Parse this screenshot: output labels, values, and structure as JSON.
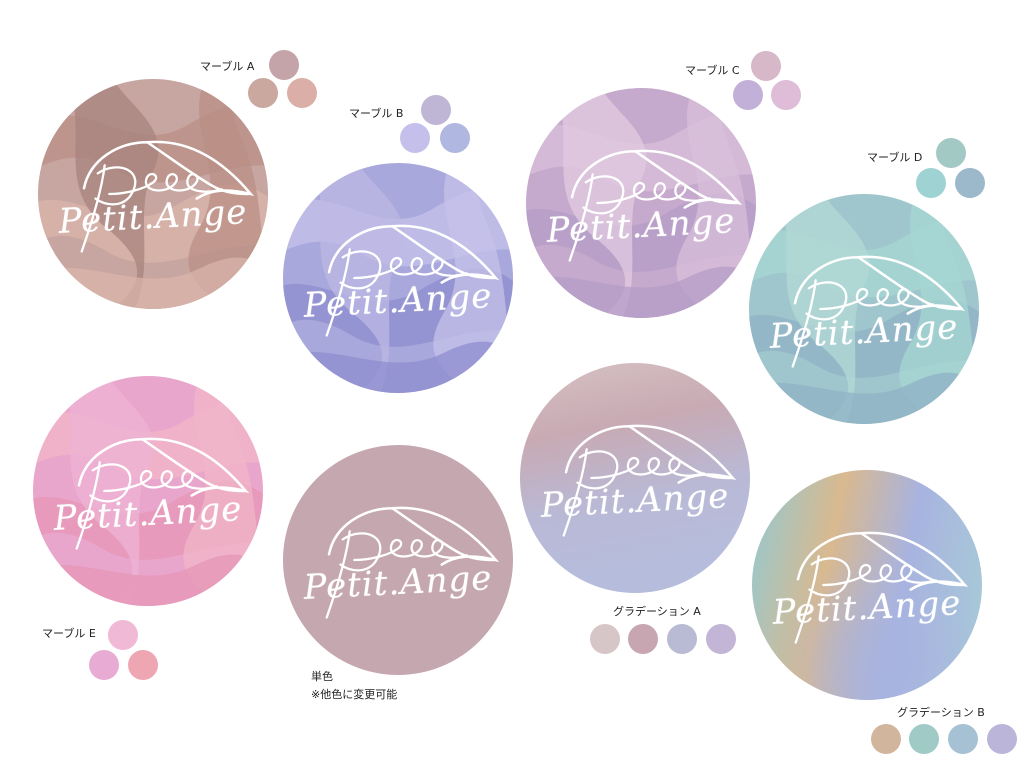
{
  "logo_text": "Petit.Ange",
  "badges": [
    {
      "name": "marble-a",
      "colors": [
        "#c7a6a2",
        "#b98f86",
        "#d9b4aa",
        "#a8837e"
      ]
    },
    {
      "name": "marble-b",
      "colors": [
        "#a9a8dc",
        "#c6c2ea",
        "#8f8dcf",
        "#bdb8e4"
      ]
    },
    {
      "name": "marble-c",
      "colors": [
        "#c6aacd",
        "#d8bfd9",
        "#b49cc7",
        "#e2cbe0"
      ]
    },
    {
      "name": "marble-d",
      "colors": [
        "#9fc6cc",
        "#a6d7d3",
        "#8fb2c6",
        "#b3d9d6"
      ]
    },
    {
      "name": "marble-e",
      "colors": [
        "#e9a6cc",
        "#f0b6c8",
        "#e596b6",
        "#efb3d4"
      ]
    },
    {
      "name": "solid",
      "colors": [
        "#c5a7af"
      ]
    },
    {
      "name": "gradation-a",
      "colors": [
        "#d6c2c3",
        "#c8aab3",
        "#b9b9d6",
        "#b6bddc"
      ]
    },
    {
      "name": "gradation-b",
      "colors": [
        "#9cc7c9",
        "#d9b98f",
        "#a8b3e0",
        "#a7c8d8"
      ]
    }
  ],
  "labels": {
    "marble_a": "マーブル A",
    "marble_b": "マーブル B",
    "marble_c": "マーブル C",
    "marble_d": "マーブル D",
    "marble_e": "マーブル E",
    "solid_1": "単色",
    "solid_2": "※他色に変更可能",
    "gradation_a": "グラデーション A",
    "gradation_b": "グラデーション B"
  },
  "swatches": {
    "marble_a": [
      "#c4a4a8",
      "#caa79f",
      "#dbaea7"
    ],
    "marble_b": [
      "#bfb5d5",
      "#c4c0eb",
      "#b0b7e0"
    ],
    "marble_c": [
      "#d7b8c9",
      "#c2b0d8",
      "#dfbcd8"
    ],
    "marble_d": [
      "#a3c9c5",
      "#9fd3d3",
      "#9cb8cb"
    ],
    "marble_e": [
      "#f0bad6",
      "#e8acd4",
      "#eea6b2"
    ],
    "gradation_a": [
      "#d7c6c8",
      "#c7a6b1",
      "#b9bbd5",
      "#c3b5d6"
    ],
    "gradation_b": [
      "#d2b59d",
      "#9fcac5",
      "#a6c0d4",
      "#bbb5da"
    ]
  }
}
